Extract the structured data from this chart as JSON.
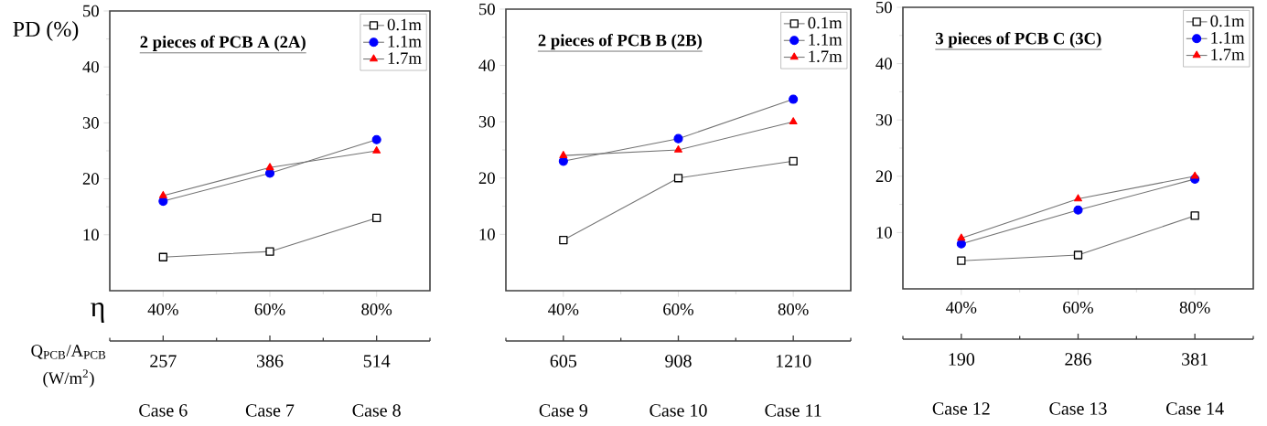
{
  "chart_data": [
    {
      "type": "line",
      "title": "2 pieces of PCB A (2A)",
      "ylabel": "PD (%)",
      "xlabel": "η",
      "categories": [
        "40%",
        "60%",
        "80%"
      ],
      "ylim": [
        0,
        50
      ],
      "yticks": [
        10,
        20,
        30,
        40,
        50
      ],
      "legend": "top right",
      "series": [
        {
          "name": "0.1m",
          "color": "#000000",
          "marker": "square",
          "values": [
            6,
            7,
            13
          ]
        },
        {
          "name": "1.1m",
          "color": "#0000ff",
          "marker": "circle",
          "values": [
            16,
            21,
            27
          ]
        },
        {
          "name": "1.7m",
          "color": "#ff0000",
          "marker": "triangle",
          "values": [
            17,
            22,
            25
          ]
        }
      ],
      "annotations": [
        "Q$_{PCB}$/A$_{PCB}$",
        "(W/m$^{2}$)",
        "257",
        "386",
        "514",
        "Case 6",
        "Case 7",
        "Case 8"
      ]
    },
    {
      "type": "line",
      "title": "2 pieces of PCB B (2B)",
      "categories": [
        "40%",
        "60%",
        "80%"
      ],
      "ylim": [
        0,
        50
      ],
      "yticks": [
        10,
        20,
        30,
        40,
        50
      ],
      "legend": "top right",
      "series": [
        {
          "name": "0.1m",
          "color": "#000000",
          "marker": "square",
          "values": [
            9,
            20,
            23
          ]
        },
        {
          "name": "1.1m",
          "color": "#0000ff",
          "marker": "circle",
          "values": [
            23,
            27,
            34
          ]
        },
        {
          "name": "1.7m",
          "color": "#ff0000",
          "marker": "triangle",
          "values": [
            24,
            25,
            30
          ]
        }
      ],
      "annotations": [
        "605",
        "908",
        "1210",
        "Case 9",
        "Case 10",
        "Case 11"
      ]
    },
    {
      "type": "line",
      "title": "3 pieces of PCB C (3C)",
      "categories": [
        "40%",
        "60%",
        "80%"
      ],
      "ylim": [
        0,
        50
      ],
      "yticks": [
        10,
        20,
        30,
        40,
        50
      ],
      "legend": "top right",
      "series": [
        {
          "name": "0.1m",
          "color": "#000000",
          "marker": "square",
          "values": [
            5,
            6,
            13
          ]
        },
        {
          "name": "1.1m",
          "color": "#0000ff",
          "marker": "circle",
          "values": [
            8,
            14,
            19.5
          ]
        },
        {
          "name": "1.7m",
          "color": "#ff0000",
          "marker": "triangle",
          "values": [
            9,
            16,
            20
          ]
        }
      ],
      "annotations": [
        "190",
        "286",
        "381",
        "Case 12",
        "Case 13",
        "Case 14"
      ]
    }
  ]
}
